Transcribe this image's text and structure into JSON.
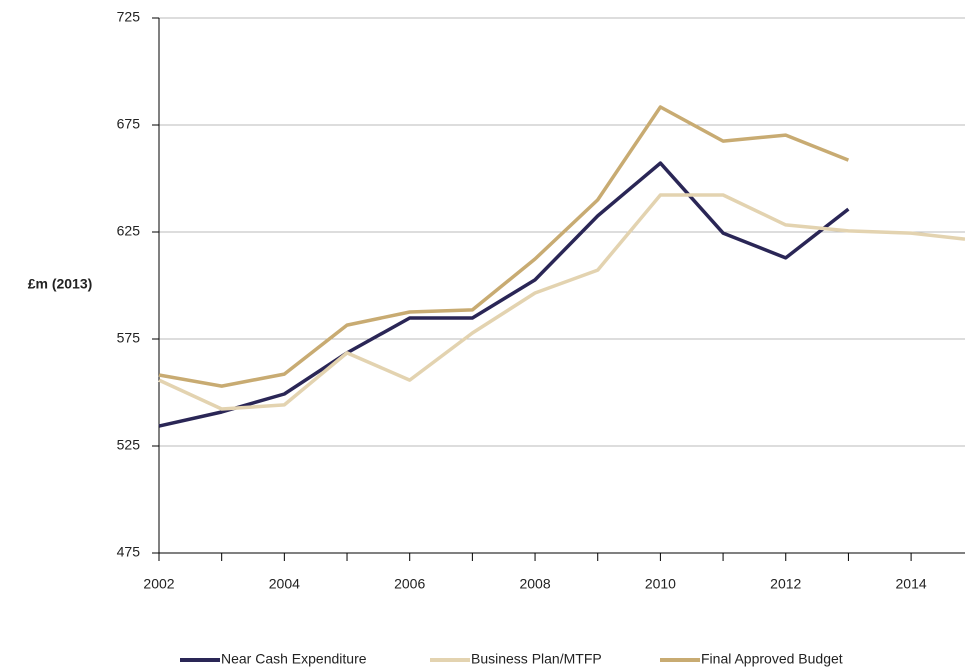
{
  "chart_data": {
    "type": "line",
    "y_label": "£m (2013)",
    "x": [
      2002,
      2003,
      2004,
      2005,
      2006,
      2007,
      2008,
      2009,
      2010,
      2011,
      2012,
      2013,
      2014,
      2014.86
    ],
    "series": [
      {
        "name": "Near Cash Expenditure",
        "color": "#2a2656",
        "values": [
          534.3,
          540.9,
          549.3,
          568.5,
          584.8,
          584.8,
          602.6,
          632.5,
          657.2,
          624.5,
          612.9,
          635.7,
          null,
          null
        ]
      },
      {
        "name": "Business Plan/MTFP",
        "color": "#e3d3b0",
        "values": [
          555.8,
          542.3,
          544.2,
          568.5,
          555.8,
          577.8,
          596.5,
          607.2,
          642.3,
          642.3,
          628.3,
          625.5,
          624.5,
          621.7
        ]
      },
      {
        "name": "Final Approved Budget",
        "color": "#c8ab72",
        "values": [
          558.2,
          553.0,
          558.6,
          581.5,
          587.6,
          588.6,
          612.4,
          640.0,
          683.4,
          667.5,
          670.3,
          658.6,
          null,
          null
        ]
      }
    ],
    "xlim": [
      2002,
      2014.86
    ],
    "xticks": [
      2002,
      2004,
      2006,
      2008,
      2010,
      2012,
      2014
    ],
    "xminorticks": [
      2003,
      2005,
      2007,
      2009,
      2011,
      2013
    ],
    "ylim": [
      475,
      725
    ],
    "yticks": [
      475,
      525,
      575,
      625,
      675,
      725
    ],
    "grid": true,
    "legend": "bottom"
  }
}
